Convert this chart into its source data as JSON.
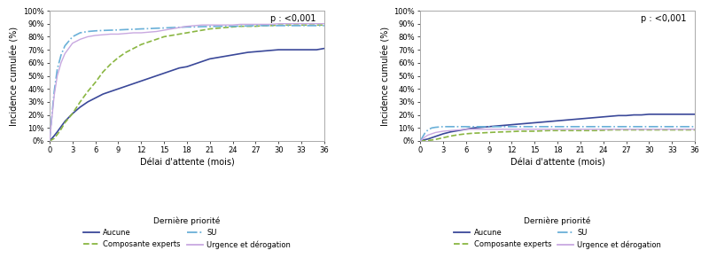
{
  "plot1": {
    "title_annot": "p : <0,001",
    "ylabel": "Incidence cumulée (%)",
    "xlabel": "Délai d'attente (mois)",
    "legend_title": "Dernière priorité",
    "xticks": [
      0,
      3,
      6,
      9,
      12,
      15,
      18,
      21,
      24,
      27,
      30,
      33,
      36
    ],
    "yticks": [
      0,
      10,
      20,
      30,
      40,
      50,
      60,
      70,
      80,
      90,
      100
    ],
    "curves": {
      "Aucune": {
        "color": "#3a4899",
        "linestyle": "solid",
        "linewidth": 1.2,
        "x": [
          0,
          0.3,
          0.6,
          1,
          1.5,
          2,
          3,
          4,
          5,
          6,
          7,
          8,
          9,
          10,
          11,
          12,
          13,
          14,
          15,
          16,
          17,
          18,
          19,
          20,
          21,
          22,
          23,
          24,
          25,
          26,
          27,
          28,
          29,
          30,
          31,
          32,
          33,
          34,
          35,
          36
        ],
        "y": [
          0,
          2,
          4,
          7,
          11,
          15,
          21,
          26,
          30,
          33,
          36,
          38,
          40,
          42,
          44,
          46,
          48,
          50,
          52,
          54,
          56,
          57,
          59,
          61,
          63,
          64,
          65,
          66,
          67,
          68,
          68.5,
          69,
          69.5,
          70,
          70,
          70,
          70,
          70,
          70,
          71
        ]
      },
      "Composante experts": {
        "color": "#8ab642",
        "linestyle": "dashed",
        "linewidth": 1.2,
        "x": [
          0,
          0.3,
          0.6,
          1,
          1.5,
          2,
          3,
          4,
          5,
          6,
          7,
          8,
          9,
          10,
          11,
          12,
          13,
          14,
          15,
          16,
          17,
          18,
          19,
          20,
          21,
          22,
          23,
          24,
          25,
          26,
          27,
          28,
          29,
          30,
          31,
          32,
          33,
          34,
          35,
          36
        ],
        "y": [
          0,
          1,
          2,
          5,
          9,
          14,
          21,
          30,
          38,
          45,
          53,
          59,
          64,
          68,
          71,
          74,
          76,
          78,
          80,
          81,
          82,
          83,
          84,
          85,
          86,
          86.5,
          87,
          87.5,
          88,
          88,
          88,
          88.5,
          88.5,
          89,
          89,
          89,
          89,
          89,
          89,
          89
        ]
      },
      "SU": {
        "color": "#6ab0d8",
        "linestyle": "dashdot",
        "linewidth": 1.2,
        "x": [
          0,
          0.3,
          0.6,
          1,
          1.5,
          2,
          3,
          4,
          5,
          6,
          7,
          8,
          9,
          10,
          11,
          12,
          13,
          14,
          15,
          16,
          17,
          18,
          19,
          20,
          21,
          22,
          23,
          24,
          25,
          26,
          27,
          28,
          29,
          30,
          31,
          32,
          33,
          34,
          35,
          36
        ],
        "y": [
          0,
          20,
          38,
          55,
          66,
          73,
          80,
          83,
          84,
          84.5,
          84.8,
          85,
          85.2,
          85.5,
          85.7,
          86,
          86.2,
          86.5,
          86.7,
          87,
          87.2,
          87.5,
          87.5,
          87.7,
          87.8,
          88,
          88,
          88,
          88.2,
          88.3,
          88.5,
          88.5,
          88.5,
          88.5,
          88.5,
          88.5,
          88.5,
          88.5,
          88.5,
          88.5
        ]
      },
      "Urgence et dérogation": {
        "color": "#c8a8e0",
        "linestyle": "solid",
        "linewidth": 1.0,
        "x": [
          0,
          0.3,
          0.6,
          1,
          1.5,
          2,
          3,
          4,
          5,
          6,
          7,
          8,
          9,
          10,
          11,
          12,
          13,
          14,
          15,
          16,
          17,
          18,
          19,
          20,
          21,
          22,
          23,
          24,
          25,
          26,
          27,
          28,
          29,
          30,
          31,
          32,
          33,
          34,
          35,
          36
        ],
        "y": [
          0,
          18,
          35,
          50,
          60,
          67,
          75,
          78,
          80,
          81,
          81.5,
          82,
          82,
          82.5,
          83,
          83,
          83.5,
          84,
          85,
          86,
          87,
          88,
          88.5,
          89,
          89,
          89,
          89,
          89,
          89.5,
          89.5,
          89.5,
          89.5,
          89.5,
          90,
          90,
          90,
          90,
          90,
          90,
          90
        ]
      }
    }
  },
  "plot2": {
    "title_annot": "p : <0,001",
    "ylabel": "Incidence cumulée (%)",
    "xlabel": "Délai d'attente (mois)",
    "legend_title": "Dernière priorité",
    "xticks": [
      0,
      3,
      6,
      9,
      12,
      15,
      18,
      21,
      24,
      27,
      30,
      33,
      36
    ],
    "yticks": [
      0,
      10,
      20,
      30,
      40,
      50,
      60,
      70,
      80,
      90,
      100
    ],
    "curves": {
      "Aucune": {
        "color": "#3a4899",
        "linestyle": "solid",
        "linewidth": 1.2,
        "x": [
          0,
          0.3,
          0.6,
          1,
          1.5,
          2,
          3,
          4,
          5,
          6,
          7,
          8,
          9,
          10,
          11,
          12,
          13,
          14,
          15,
          16,
          17,
          18,
          19,
          20,
          21,
          22,
          23,
          24,
          25,
          26,
          27,
          28,
          29,
          30,
          31,
          32,
          33,
          34,
          35,
          36
        ],
        "y": [
          0,
          0.5,
          1,
          1.5,
          2.5,
          3.5,
          5.5,
          7,
          8,
          9,
          10,
          10.5,
          11,
          11.5,
          12,
          12.5,
          13,
          13.5,
          14,
          14.5,
          15,
          15.5,
          16,
          16.5,
          17,
          17.5,
          18,
          18.5,
          19,
          19.5,
          19.5,
          20,
          20,
          20.5,
          20.5,
          20.5,
          20.5,
          20.5,
          20.5,
          20.5
        ]
      },
      "Composante experts": {
        "color": "#8ab642",
        "linestyle": "dashed",
        "linewidth": 1.2,
        "x": [
          0,
          0.3,
          0.6,
          1,
          1.5,
          2,
          3,
          4,
          5,
          6,
          7,
          8,
          9,
          10,
          11,
          12,
          13,
          14,
          15,
          16,
          17,
          18,
          19,
          20,
          21,
          22,
          23,
          24,
          25,
          26,
          27,
          28,
          29,
          30,
          31,
          32,
          33,
          34,
          35,
          36
        ],
        "y": [
          0,
          0.1,
          0.2,
          0.4,
          0.7,
          1.2,
          2.5,
          3.8,
          4.8,
          5.5,
          6,
          6.2,
          6.5,
          6.8,
          7,
          7.2,
          7.5,
          7.5,
          7.5,
          7.8,
          8,
          8,
          8,
          8,
          8,
          8,
          8,
          8.2,
          8.5,
          8.5,
          8.5,
          8.5,
          8.5,
          8.5,
          8.5,
          8.5,
          8.5,
          8.5,
          8.5,
          8.5
        ]
      },
      "SU": {
        "color": "#6ab0d8",
        "linestyle": "dashdot",
        "linewidth": 1.2,
        "x": [
          0,
          0.3,
          0.6,
          1,
          1.5,
          2,
          3,
          4,
          5,
          6,
          7,
          8,
          9,
          10,
          11,
          12,
          13,
          14,
          15,
          16,
          17,
          18,
          19,
          20,
          21,
          22,
          23,
          24,
          25,
          26,
          27,
          28,
          29,
          30,
          31,
          32,
          33,
          34,
          35,
          36
        ],
        "y": [
          0,
          3,
          6,
          8.5,
          10,
          10.5,
          11,
          11,
          11,
          11,
          11,
          11,
          11,
          11,
          11,
          11,
          11,
          11,
          11,
          11,
          11,
          11,
          11,
          11,
          11,
          11,
          11,
          11,
          11,
          11,
          11,
          11,
          11,
          11,
          11,
          11,
          11,
          11,
          11,
          11
        ]
      },
      "Urgence et dérogation": {
        "color": "#c8a8e0",
        "linestyle": "solid",
        "linewidth": 1.0,
        "x": [
          0,
          0.3,
          0.6,
          1,
          1.5,
          2,
          3,
          4,
          5,
          6,
          7,
          8,
          9,
          10,
          11,
          12,
          13,
          14,
          15,
          16,
          17,
          18,
          19,
          20,
          21,
          22,
          23,
          24,
          25,
          26,
          27,
          28,
          29,
          30,
          31,
          32,
          33,
          34,
          35,
          36
        ],
        "y": [
          0,
          1.5,
          3,
          4.5,
          5.5,
          6.5,
          7.5,
          8,
          8.5,
          9,
          9,
          9,
          9,
          9,
          9,
          9,
          9,
          9,
          9,
          9,
          9,
          9,
          9,
          9,
          9,
          9,
          9,
          9,
          9,
          9,
          9,
          9,
          9,
          9,
          9,
          9,
          9,
          9,
          9,
          9
        ]
      }
    }
  },
  "legend_order": [
    "Aucune",
    "Composante experts",
    "SU",
    "Urgence et dérogation"
  ],
  "spine_color": "#aaaaaa",
  "tick_fontsize": 6,
  "label_fontsize": 7,
  "annot_fontsize": 7,
  "legend_fontsize": 6,
  "legend_title_fontsize": 6.5
}
